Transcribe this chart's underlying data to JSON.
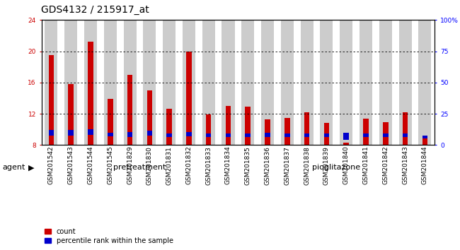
{
  "title": "GDS4132 / 215917_at",
  "samples": [
    "GSM201542",
    "GSM201543",
    "GSM201544",
    "GSM201545",
    "GSM201829",
    "GSM201830",
    "GSM201831",
    "GSM201832",
    "GSM201833",
    "GSM201834",
    "GSM201835",
    "GSM201836",
    "GSM201837",
    "GSM201838",
    "GSM201839",
    "GSM201840",
    "GSM201841",
    "GSM201842",
    "GSM201843",
    "GSM201844"
  ],
  "count_values": [
    19.5,
    15.8,
    21.2,
    13.9,
    17.0,
    15.0,
    12.6,
    20.0,
    11.9,
    13.0,
    12.9,
    11.3,
    11.5,
    12.2,
    10.8,
    8.3,
    11.4,
    10.9,
    12.2,
    9.0
  ],
  "percentile_values": [
    9.2,
    9.2,
    9.3,
    9.1,
    9.0,
    9.2,
    9.0,
    9.1,
    9.0,
    9.0,
    9.0,
    9.0,
    9.0,
    9.0,
    9.0,
    8.7,
    9.0,
    9.0,
    9.0,
    8.8
  ],
  "percentile_blue": [
    0.7,
    0.7,
    0.7,
    0.5,
    0.7,
    0.6,
    0.5,
    0.6,
    0.5,
    0.5,
    0.5,
    0.6,
    0.5,
    0.5,
    0.5,
    0.9,
    0.5,
    0.5,
    0.5,
    0.4
  ],
  "bar_base": 8.0,
  "ylim": [
    8,
    24
  ],
  "yticks": [
    8,
    12,
    16,
    20,
    24
  ],
  "right_yticks": [
    0,
    25,
    50,
    75,
    100
  ],
  "right_ylim": [
    0,
    100
  ],
  "pretreatment_count": 10,
  "pioglitazone_count": 10,
  "pretreatment_label": "pretreatment",
  "pioglitazone_label": "pioglitazone",
  "agent_label": "agent",
  "legend_count": "count",
  "legend_percentile": "percentile rank within the sample",
  "bar_color_red": "#cc0000",
  "bar_color_blue": "#0000cc",
  "pretreatment_color": "#aaeaaa",
  "pioglitazone_color": "#44cc44",
  "bar_bg_color": "#cccccc",
  "bar_width": 0.65,
  "title_fontsize": 10,
  "tick_fontsize": 6.5,
  "label_fontsize": 8
}
